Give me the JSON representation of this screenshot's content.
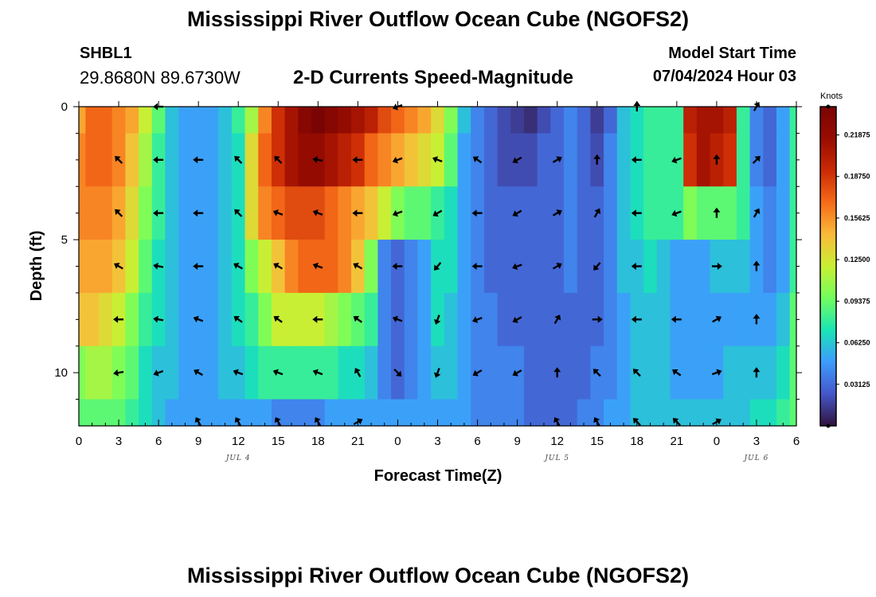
{
  "page": {
    "title": "Mississippi River Outflow Ocean Cube (NGOFS2)",
    "station": "SHBL1",
    "coords": "29.8680N  89.6730W",
    "plot_title": "2-D Currents Speed-Magnitude",
    "start_label": "Model Start Time",
    "start_value": "07/04/2024 Hour 03",
    "bottom_title": "Mississippi River Outflow Ocean Cube (NGOFS2)"
  },
  "chart_data": {
    "type": "heatmap",
    "title": "2-D Currents Speed-Magnitude",
    "xlabel": "Forecast Time(Z)",
    "ylabel": "Depth (ft)",
    "x_ticks": [
      "0",
      "3",
      "6",
      "9",
      "12",
      "15",
      "18",
      "21",
      "0",
      "3",
      "6",
      "9",
      "12",
      "15",
      "18",
      "21",
      "0",
      "3",
      "6"
    ],
    "x_range_hours": [
      0,
      54
    ],
    "date_labels": [
      {
        "hour": 12,
        "text": "JUL 4"
      },
      {
        "hour": 36,
        "text": "JUL 5"
      },
      {
        "hour": 51,
        "text": "JUL 6"
      }
    ],
    "y_ticks": [
      "0",
      "5",
      "10"
    ],
    "y_range_ft": [
      0,
      12
    ],
    "y_inverted": true,
    "colorbar": {
      "unit": "Knots",
      "range": [
        0,
        0.24
      ],
      "labels": [
        "0.21875",
        "0.18750",
        "0.15625",
        "0.12500",
        "0.09375",
        "0.06250",
        "0.03125"
      ],
      "label_values": [
        0.21875,
        0.1875,
        0.15625,
        0.125,
        0.09375,
        0.0625,
        0.03125
      ]
    },
    "depth_levels_ft": [
      0,
      2,
      4,
      6,
      8,
      10,
      12
    ],
    "column_hours": [
      0,
      1,
      2,
      3,
      4,
      5,
      6,
      7,
      8,
      9,
      10,
      11,
      12,
      13,
      14,
      15,
      16,
      17,
      18,
      19,
      20,
      21,
      22,
      23,
      24,
      25,
      26,
      27,
      28,
      29,
      30,
      31,
      32,
      33,
      34,
      35,
      36,
      37,
      38,
      39,
      40,
      41,
      42,
      43,
      44,
      45,
      46,
      47,
      48,
      49,
      50,
      51,
      52,
      53,
      54
    ],
    "speed_knots": [
      [
        0.15,
        0.17,
        0.17,
        0.16,
        0.15,
        0.12,
        0.09,
        0.06,
        0.05,
        0.05,
        0.05,
        0.06,
        0.08,
        0.11,
        0.16,
        0.19,
        0.21,
        0.23,
        0.24,
        0.23,
        0.22,
        0.21,
        0.2,
        0.18,
        0.17,
        0.16,
        0.15,
        0.13,
        0.1,
        0.06,
        0.04,
        0.03,
        0.02,
        0.015,
        0.01,
        0.02,
        0.03,
        0.04,
        0.03,
        0.015,
        0.03,
        0.06,
        0.07,
        0.08,
        0.08,
        0.08,
        0.2,
        0.21,
        0.21,
        0.2,
        0.08,
        0.04,
        0.03,
        0.05,
        0.08
      ],
      [
        0.16,
        0.17,
        0.17,
        0.16,
        0.14,
        0.11,
        0.08,
        0.06,
        0.05,
        0.05,
        0.05,
        0.06,
        0.07,
        0.13,
        0.17,
        0.19,
        0.21,
        0.22,
        0.22,
        0.21,
        0.2,
        0.19,
        0.17,
        0.16,
        0.15,
        0.14,
        0.13,
        0.12,
        0.09,
        0.05,
        0.04,
        0.03,
        0.02,
        0.02,
        0.02,
        0.03,
        0.03,
        0.04,
        0.03,
        0.02,
        0.04,
        0.06,
        0.07,
        0.08,
        0.08,
        0.08,
        0.19,
        0.21,
        0.2,
        0.19,
        0.08,
        0.04,
        0.03,
        0.05,
        0.08
      ],
      [
        0.16,
        0.16,
        0.16,
        0.15,
        0.13,
        0.1,
        0.08,
        0.06,
        0.05,
        0.05,
        0.05,
        0.06,
        0.07,
        0.13,
        0.16,
        0.17,
        0.18,
        0.18,
        0.18,
        0.17,
        0.16,
        0.15,
        0.14,
        0.12,
        0.1,
        0.09,
        0.09,
        0.08,
        0.07,
        0.05,
        0.04,
        0.03,
        0.03,
        0.03,
        0.03,
        0.03,
        0.03,
        0.04,
        0.03,
        0.03,
        0.04,
        0.06,
        0.07,
        0.08,
        0.08,
        0.08,
        0.1,
        0.09,
        0.09,
        0.09,
        0.08,
        0.05,
        0.04,
        0.05,
        0.08
      ],
      [
        0.15,
        0.15,
        0.15,
        0.14,
        0.12,
        0.09,
        0.07,
        0.06,
        0.05,
        0.05,
        0.05,
        0.06,
        0.07,
        0.1,
        0.12,
        0.14,
        0.16,
        0.17,
        0.17,
        0.17,
        0.16,
        0.14,
        0.1,
        0.04,
        0.03,
        0.04,
        0.05,
        0.07,
        0.07,
        0.05,
        0.04,
        0.03,
        0.03,
        0.03,
        0.03,
        0.03,
        0.03,
        0.04,
        0.03,
        0.03,
        0.04,
        0.06,
        0.06,
        0.07,
        0.06,
        0.05,
        0.05,
        0.05,
        0.06,
        0.06,
        0.06,
        0.05,
        0.04,
        0.05,
        0.08
      ],
      [
        0.14,
        0.14,
        0.13,
        0.12,
        0.1,
        0.08,
        0.07,
        0.06,
        0.05,
        0.05,
        0.05,
        0.06,
        0.07,
        0.08,
        0.1,
        0.12,
        0.12,
        0.12,
        0.12,
        0.11,
        0.1,
        0.09,
        0.08,
        0.04,
        0.03,
        0.04,
        0.05,
        0.07,
        0.06,
        0.05,
        0.04,
        0.04,
        0.03,
        0.03,
        0.03,
        0.03,
        0.03,
        0.03,
        0.03,
        0.03,
        0.04,
        0.05,
        0.06,
        0.06,
        0.06,
        0.05,
        0.05,
        0.05,
        0.05,
        0.05,
        0.05,
        0.05,
        0.05,
        0.06,
        0.09
      ],
      [
        0.1,
        0.11,
        0.11,
        0.1,
        0.09,
        0.07,
        0.06,
        0.06,
        0.05,
        0.05,
        0.05,
        0.06,
        0.06,
        0.07,
        0.08,
        0.08,
        0.08,
        0.08,
        0.08,
        0.08,
        0.07,
        0.07,
        0.06,
        0.04,
        0.03,
        0.04,
        0.05,
        0.06,
        0.06,
        0.05,
        0.04,
        0.04,
        0.04,
        0.04,
        0.03,
        0.03,
        0.03,
        0.03,
        0.03,
        0.04,
        0.04,
        0.05,
        0.06,
        0.06,
        0.06,
        0.05,
        0.05,
        0.05,
        0.05,
        0.06,
        0.06,
        0.06,
        0.06,
        0.07,
        0.09
      ],
      [
        0.09,
        0.09,
        0.09,
        0.09,
        0.08,
        0.07,
        0.06,
        0.05,
        0.05,
        0.05,
        0.05,
        0.05,
        0.05,
        0.05,
        0.05,
        0.04,
        0.04,
        0.04,
        0.04,
        0.05,
        0.05,
        0.05,
        0.05,
        0.05,
        0.05,
        0.05,
        0.05,
        0.05,
        0.05,
        0.05,
        0.04,
        0.04,
        0.04,
        0.04,
        0.03,
        0.03,
        0.03,
        0.03,
        0.04,
        0.04,
        0.05,
        0.05,
        0.06,
        0.06,
        0.06,
        0.06,
        0.06,
        0.06,
        0.06,
        0.06,
        0.06,
        0.07,
        0.07,
        0.08,
        0.09
      ]
    ],
    "arrow_depths_ft": [
      0,
      2,
      4,
      6,
      8,
      10,
      12
    ],
    "arrow_hours": [
      3,
      6,
      9,
      12,
      15,
      18,
      21,
      24,
      27,
      30,
      33,
      36,
      39,
      42,
      45,
      48,
      51
    ],
    "arrow_directions_deg": [
      [
        null,
        180,
        null,
        null,
        null,
        null,
        null,
        200,
        null,
        null,
        null,
        null,
        null,
        90,
        null,
        null,
        60
      ],
      [
        135,
        180,
        180,
        135,
        135,
        170,
        180,
        200,
        160,
        145,
        210,
        30,
        90,
        180,
        200,
        90,
        45
      ],
      [
        135,
        180,
        180,
        135,
        160,
        160,
        180,
        200,
        210,
        180,
        210,
        30,
        60,
        180,
        200,
        90,
        60
      ],
      [
        150,
        170,
        180,
        150,
        150,
        160,
        150,
        180,
        230,
        180,
        200,
        30,
        230,
        180,
        null,
        0,
        90
      ],
      [
        180,
        170,
        160,
        145,
        145,
        180,
        145,
        160,
        250,
        200,
        210,
        60,
        0,
        180,
        180,
        30,
        90
      ],
      [
        190,
        200,
        150,
        160,
        160,
        160,
        120,
        315,
        250,
        210,
        210,
        90,
        135,
        135,
        145,
        20,
        90
      ],
      [
        null,
        null,
        120,
        120,
        120,
        120,
        30,
        null,
        null,
        null,
        null,
        120,
        120,
        135,
        135,
        30,
        null
      ]
    ]
  }
}
